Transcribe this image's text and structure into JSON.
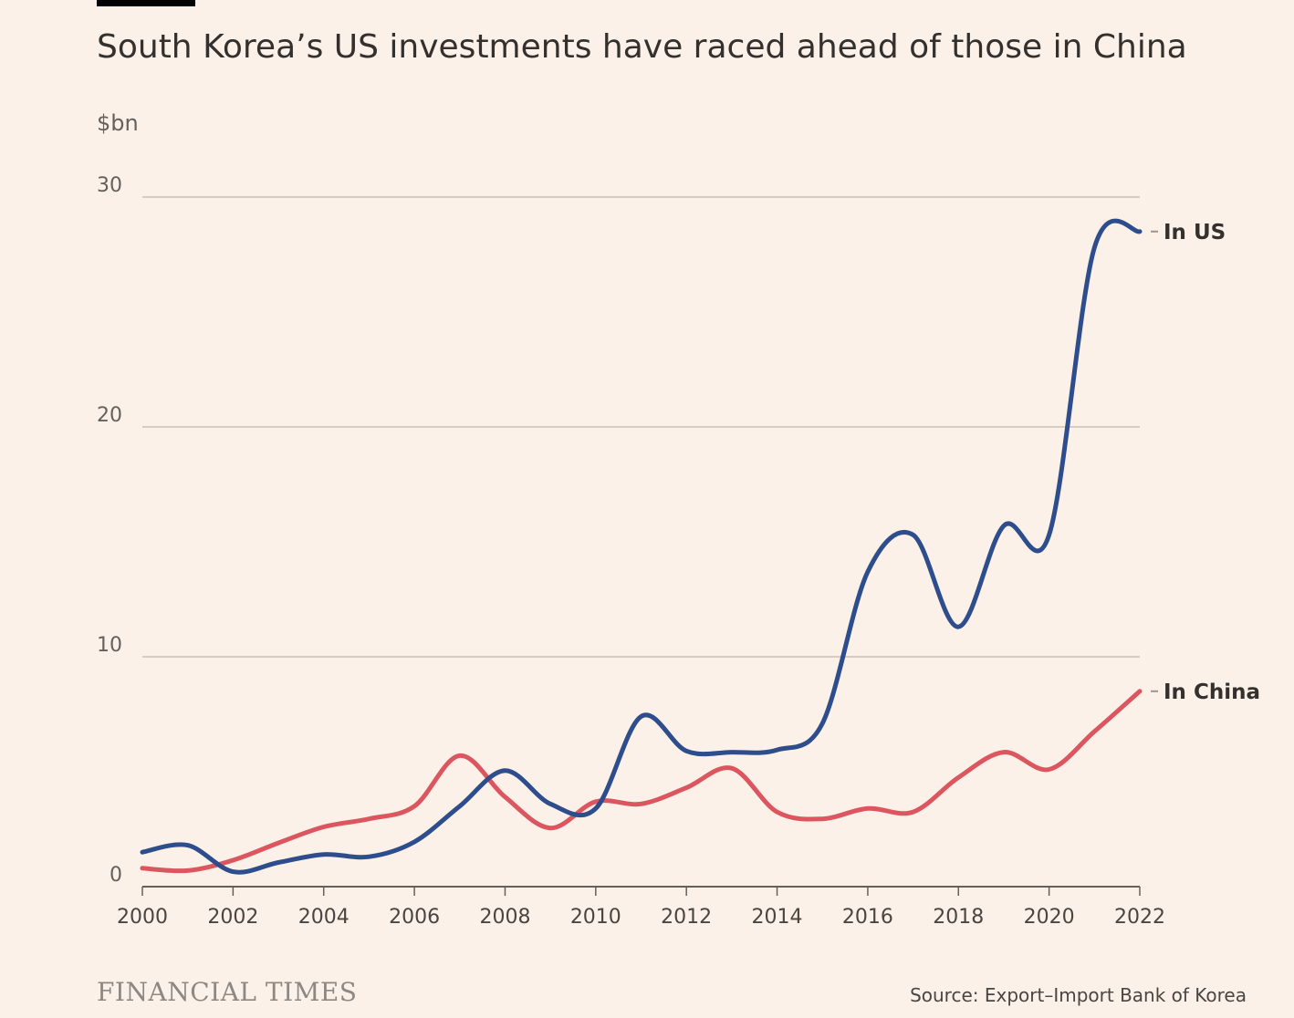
{
  "header": {
    "title": "South Korea’s US investments have raced ahead of those in China"
  },
  "footer": {
    "brand": "FINANCIAL TIMES",
    "source": "Source: Export–Import Bank of Korea"
  },
  "colors": {
    "background": "#fcf1e8",
    "us_series": "#2d4d8c",
    "china_series": "#dc5660",
    "gridline": "#c9bfb8",
    "text": "#33302e"
  },
  "chart_data": {
    "type": "line",
    "title": "South Korea’s US investments have raced ahead of those in China",
    "ylabel": "$bn",
    "xlabel": "",
    "x": [
      2000,
      2001,
      2002,
      2003,
      2004,
      2005,
      2006,
      2007,
      2008,
      2009,
      2010,
      2011,
      2012,
      2013,
      2014,
      2015,
      2016,
      2017,
      2018,
      2019,
      2020,
      2021,
      2022
    ],
    "xticks": [
      "2000",
      "2002",
      "2004",
      "2006",
      "2008",
      "2010",
      "2012",
      "2014",
      "2016",
      "2018",
      "2020",
      "2022"
    ],
    "yticks": [
      "0",
      "10",
      "20",
      "30"
    ],
    "ylim": [
      0,
      30
    ],
    "xlim": [
      2000,
      2022
    ],
    "grid": true,
    "legend": "direct labels at line ends, right",
    "series": [
      {
        "name": "In US",
        "color": "#2d4d8c",
        "values": [
          1.5,
          1.8,
          0.65,
          1.05,
          1.4,
          1.3,
          1.95,
          3.5,
          5.05,
          3.6,
          3.4,
          7.4,
          5.9,
          5.85,
          5.95,
          7.1,
          13.7,
          15.3,
          11.3,
          15.7,
          15.3,
          27.8,
          28.5
        ]
      },
      {
        "name": "In China",
        "color": "#dc5660",
        "values": [
          0.8,
          0.7,
          1.15,
          1.9,
          2.6,
          2.95,
          3.5,
          5.7,
          3.9,
          2.55,
          3.7,
          3.6,
          4.3,
          5.15,
          3.25,
          2.95,
          3.4,
          3.25,
          4.75,
          5.85,
          5.1,
          6.75,
          8.5
        ]
      }
    ]
  }
}
